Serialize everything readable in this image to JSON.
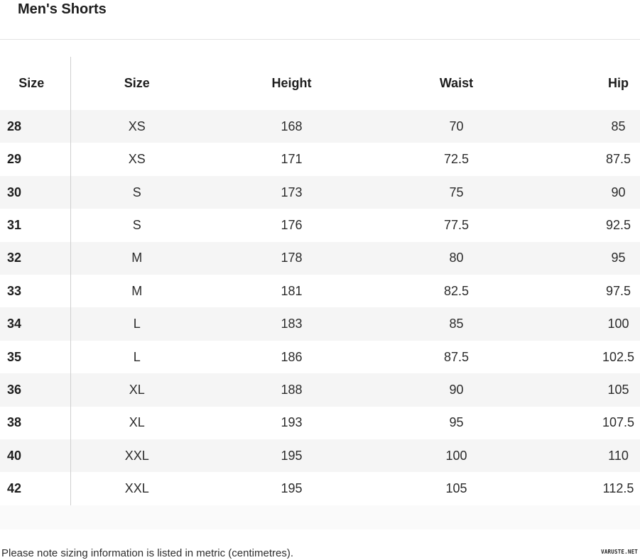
{
  "page": {
    "title": "Men's Shorts",
    "footer_note": "Please note sizing information is listed in metric (centimetres).",
    "watermark": "VARUSTE.NET"
  },
  "table": {
    "columns": [
      "Size",
      "Size",
      "Height",
      "Waist",
      "Hip"
    ],
    "rows": [
      [
        "28",
        "XS",
        "168",
        "70",
        "85"
      ],
      [
        "29",
        "XS",
        "171",
        "72.5",
        "87.5"
      ],
      [
        "30",
        "S",
        "173",
        "75",
        "90"
      ],
      [
        "31",
        "S",
        "176",
        "77.5",
        "92.5"
      ],
      [
        "32",
        "M",
        "178",
        "80",
        "95"
      ],
      [
        "33",
        "M",
        "181",
        "82.5",
        "97.5"
      ],
      [
        "34",
        "L",
        "183",
        "85",
        "100"
      ],
      [
        "35",
        "L",
        "186",
        "87.5",
        "102.5"
      ],
      [
        "36",
        "XL",
        "188",
        "90",
        "105"
      ],
      [
        "38",
        "XL",
        "193",
        "95",
        "107.5"
      ],
      [
        "40",
        "XXL",
        "195",
        "100",
        "110"
      ],
      [
        "42",
        "XXL",
        "195",
        "105",
        "112.5"
      ]
    ]
  },
  "colors": {
    "row_stripe": "#f5f5f5",
    "column_divider": "#cfcfcf",
    "title_rule": "#e3e3e3",
    "below_table_band": "#fafafa",
    "text": "#2b2b2b"
  }
}
